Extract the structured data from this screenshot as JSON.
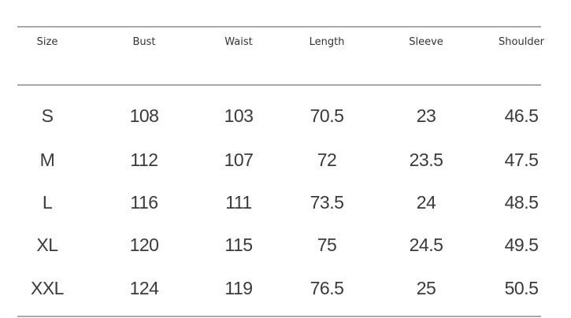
{
  "table": {
    "headers": [
      "Size",
      "Bust",
      "Waist",
      "Length",
      "Sleeve",
      "Shoulder"
    ],
    "rows": [
      [
        "S",
        "108",
        "103",
        "70.5",
        "23",
        "46.5"
      ],
      [
        "M",
        "112",
        "107",
        "72",
        "23.5",
        "47.5"
      ],
      [
        "L",
        "116",
        "111",
        "73.5",
        "24",
        "48.5"
      ],
      [
        "XL",
        "120",
        "115",
        "75",
        "24.5",
        "49.5"
      ],
      [
        "XXL",
        "124",
        "119",
        "76.5",
        "25",
        "50.5"
      ]
    ]
  }
}
